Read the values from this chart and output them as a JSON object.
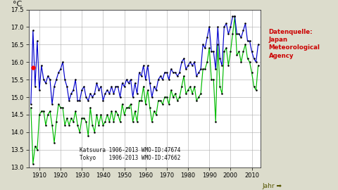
{
  "title": "",
  "ylabel": "°C",
  "xlabel_arrow": "Jahr ➡",
  "ylim": [
    13.0,
    17.5
  ],
  "xlim": [
    1905,
    2014
  ],
  "yticks": [
    13.0,
    13.5,
    14.0,
    14.5,
    15.0,
    15.5,
    16.0,
    16.5,
    17.0,
    17.5
  ],
  "xticks": [
    1910,
    1920,
    1930,
    1940,
    1950,
    1960,
    1970,
    1980,
    1990,
    2000,
    2010
  ],
  "bg_color": "#dcdccc",
  "plot_bg_color": "#ffffff",
  "katsuura_color": "#00bb00",
  "tokyo_color": "#0000cc",
  "dot_color": "#050505",
  "source_text": "Datenquelle:\nJapan\nMeteorological\nAgency",
  "source_color": "#cc0000",
  "legend_line1": "Katsuura 1906-2013 WMO-ID:47674",
  "legend_line2": "Tokyo    1906-2013 WMO-ID:47662",
  "years": [
    1906,
    1907,
    1908,
    1909,
    1910,
    1911,
    1912,
    1913,
    1914,
    1915,
    1916,
    1917,
    1918,
    1919,
    1920,
    1921,
    1922,
    1923,
    1924,
    1925,
    1926,
    1927,
    1928,
    1929,
    1930,
    1931,
    1932,
    1933,
    1934,
    1935,
    1936,
    1937,
    1938,
    1939,
    1940,
    1941,
    1942,
    1943,
    1944,
    1945,
    1946,
    1947,
    1948,
    1949,
    1950,
    1951,
    1952,
    1953,
    1954,
    1955,
    1956,
    1957,
    1958,
    1959,
    1960,
    1961,
    1962,
    1963,
    1964,
    1965,
    1966,
    1967,
    1968,
    1969,
    1970,
    1971,
    1972,
    1973,
    1974,
    1975,
    1976,
    1977,
    1978,
    1979,
    1980,
    1981,
    1982,
    1983,
    1984,
    1985,
    1986,
    1987,
    1988,
    1989,
    1990,
    1991,
    1992,
    1993,
    1994,
    1995,
    1996,
    1997,
    1998,
    1999,
    2000,
    2001,
    2002,
    2003,
    2004,
    2005,
    2006,
    2007,
    2008,
    2009,
    2010,
    2011,
    2012,
    2013
  ],
  "tokyo": [
    14.8,
    16.9,
    15.3,
    16.6,
    15.2,
    15.9,
    15.5,
    15.4,
    15.6,
    15.5,
    14.8,
    15.3,
    15.5,
    15.7,
    15.8,
    16.0,
    15.5,
    15.3,
    14.9,
    15.1,
    15.2,
    15.5,
    14.9,
    14.9,
    15.2,
    15.3,
    15.0,
    14.9,
    15.1,
    15.0,
    15.1,
    15.4,
    15.2,
    15.3,
    14.9,
    15.1,
    15.2,
    15.1,
    15.3,
    15.1,
    15.3,
    15.3,
    15.0,
    15.4,
    15.3,
    15.5,
    15.4,
    15.5,
    15.0,
    15.4,
    15.1,
    15.7,
    15.6,
    15.9,
    15.5,
    15.9,
    15.4,
    15.0,
    15.3,
    15.2,
    15.5,
    15.6,
    15.5,
    15.7,
    15.7,
    15.5,
    15.8,
    15.7,
    15.7,
    15.6,
    15.7,
    16.0,
    16.1,
    15.8,
    15.9,
    16.0,
    15.9,
    16.0,
    15.6,
    15.7,
    15.8,
    16.5,
    16.4,
    16.7,
    17.0,
    16.3,
    16.3,
    15.8,
    17.0,
    16.1,
    15.9,
    17.0,
    17.1,
    16.8,
    17.0,
    17.3,
    17.3,
    16.8,
    16.8,
    16.7,
    16.9,
    17.1,
    16.6,
    16.6,
    16.3,
    16.1,
    16.0,
    16.5
  ],
  "katsuura": [
    14.7,
    13.1,
    13.6,
    13.5,
    14.5,
    14.6,
    14.6,
    14.2,
    14.5,
    14.6,
    14.2,
    13.7,
    14.3,
    14.8,
    14.7,
    14.7,
    14.2,
    14.4,
    14.2,
    14.4,
    14.3,
    14.6,
    14.2,
    14.0,
    14.4,
    14.4,
    14.3,
    13.9,
    14.7,
    14.2,
    14.0,
    14.5,
    14.2,
    14.5,
    14.2,
    14.3,
    14.5,
    14.3,
    14.6,
    14.3,
    14.6,
    14.5,
    14.3,
    14.8,
    14.5,
    14.7,
    14.7,
    14.8,
    14.3,
    14.6,
    14.3,
    14.9,
    14.9,
    15.3,
    14.8,
    15.2,
    14.7,
    14.3,
    14.6,
    14.5,
    14.9,
    14.9,
    14.8,
    15.0,
    15.0,
    14.8,
    15.2,
    15.0,
    15.1,
    14.9,
    15.0,
    15.3,
    15.6,
    15.1,
    15.2,
    15.3,
    15.1,
    15.3,
    14.9,
    15.0,
    15.1,
    15.8,
    15.8,
    16.0,
    16.4,
    15.5,
    15.5,
    14.3,
    16.5,
    15.3,
    15.1,
    16.3,
    16.4,
    15.9,
    16.3,
    16.8,
    17.3,
    16.2,
    16.3,
    16.0,
    16.3,
    16.5,
    16.1,
    16.0,
    15.7,
    15.3,
    15.2,
    15.9
  ],
  "red_dot_year": 1907,
  "red_dot_temp": 15.85
}
